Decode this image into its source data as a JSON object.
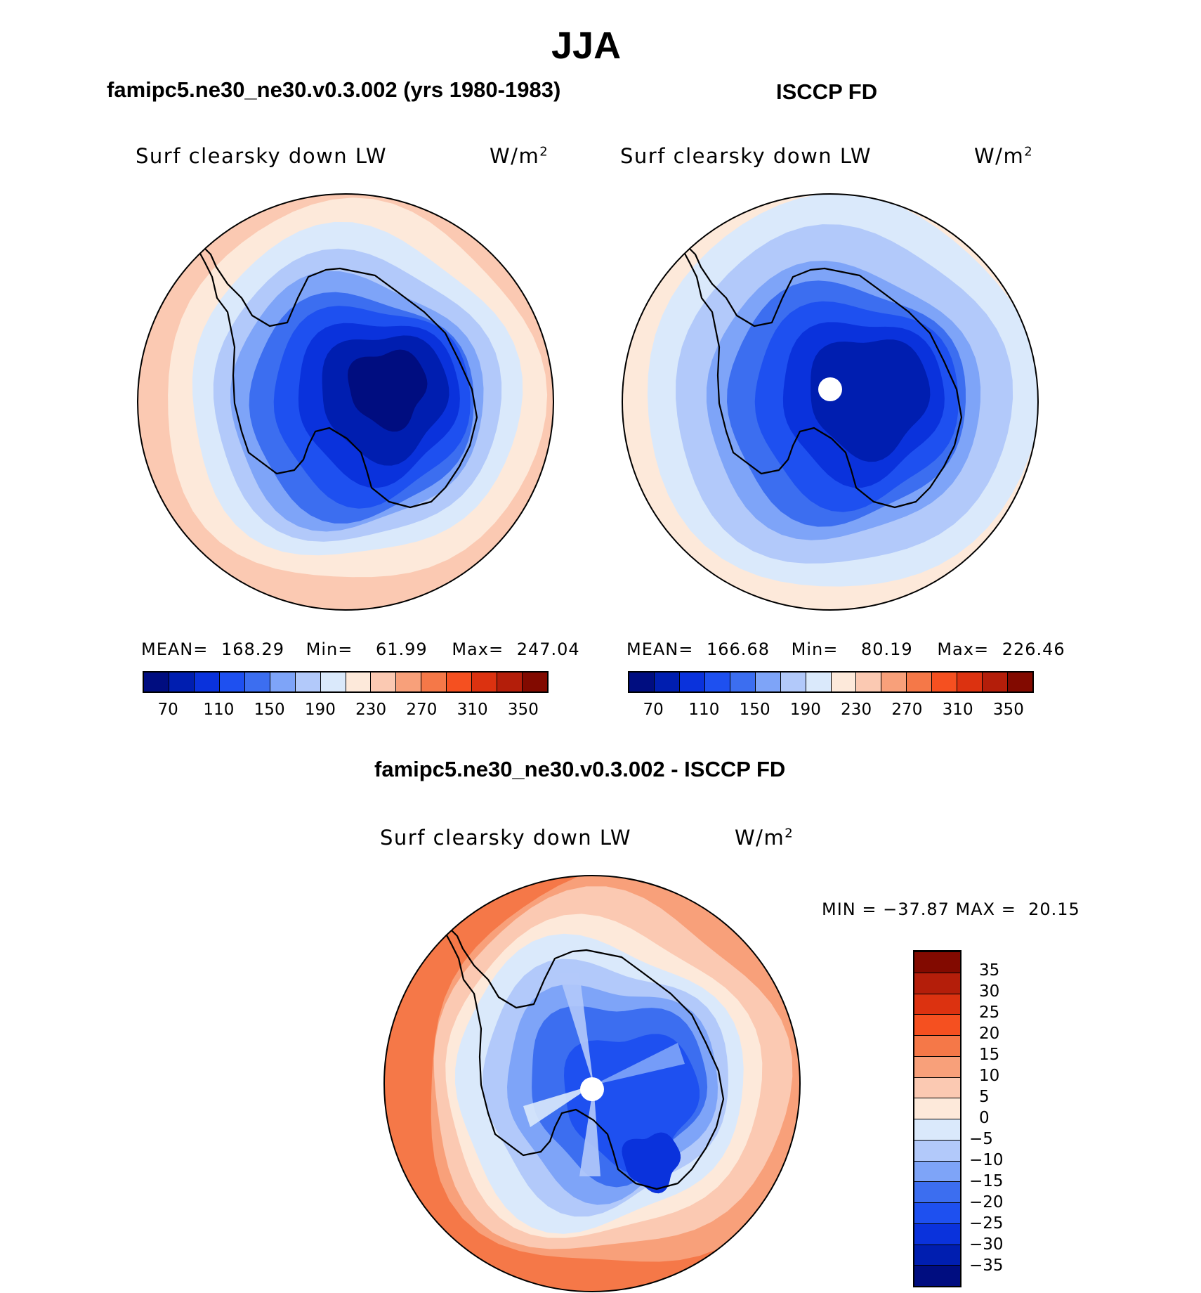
{
  "figure_title": "JJA",
  "panels": [
    {
      "heading": "famipc5.ne30_ne30.v0.3.002 (yrs 1980-1983)",
      "variable": "Surf clearsky down LW",
      "units_base": "W/m",
      "units_sup": "2",
      "mean_label": "MEAN=",
      "mean": "168.29",
      "min_label": "Min=",
      "min": "61.99",
      "max_label": "Max=",
      "max": "247.04",
      "pole_missing": false
    },
    {
      "heading": "ISCCP FD",
      "variable": "Surf clearsky down LW",
      "units_base": "W/m",
      "units_sup": "2",
      "mean_label": "MEAN=",
      "mean": "166.68",
      "min_label": "Min=",
      "min": "80.19",
      "max_label": "Max=",
      "max": "226.46",
      "pole_missing": true
    }
  ],
  "diff_panel": {
    "heading": "famipc5.ne30_ne30.v0.3.002 - ISCCP FD",
    "variable": "Surf clearsky down LW",
    "units_base": "W/m",
    "units_sup": "2",
    "stats_text": "MIN = −37.87 MAX =  20.15",
    "pole_missing": true
  },
  "colorbar_top": {
    "labels": [
      "70",
      "110",
      "150",
      "190",
      "230",
      "270",
      "310",
      "350"
    ],
    "colors": [
      "#000d80",
      "#001eb0",
      "#0a32dc",
      "#1e50f0",
      "#3c6ef0",
      "#7ea4f8",
      "#b2c9fa",
      "#dae9fb",
      "#fde9da",
      "#fbc9b2",
      "#f8a07a",
      "#f57848",
      "#f55020",
      "#dc3210",
      "#b41e0a",
      "#820a00"
    ]
  },
  "colorbar_diff": {
    "labels": [
      "35",
      "30",
      "25",
      "20",
      "15",
      "10",
      "5",
      "0",
      "−5",
      "−10",
      "−15",
      "−20",
      "−25",
      "−30",
      "−35"
    ],
    "colors": [
      "#000d80",
      "#001eb0",
      "#0a32dc",
      "#1e50f0",
      "#3c6ef0",
      "#7ea4f8",
      "#b2c9fa",
      "#dae9fb",
      "#fde9da",
      "#fbc9b2",
      "#f8a07a",
      "#f57848",
      "#f55020",
      "#dc3210",
      "#b41e0a",
      "#820a00"
    ]
  },
  "map_colors": {
    "ring_outer": "#fbc9b2",
    "ring_2": "#fde9da",
    "ring_3": "#dae9fb",
    "ring_4": "#b2c9fa",
    "ring_5": "#7ea4f8",
    "ring_6": "#3c6ef0",
    "ring_7": "#1e50f0",
    "ring_8": "#0a32dc",
    "ring_9": "#001eb0",
    "core": "#000d80",
    "diff_outer": "#f57848",
    "diff_2": "#f8a07a",
    "diff_3": "#fbc9b2",
    "diff_4": "#fde9da",
    "diff_5": "#dae9fb",
    "diff_6": "#b2c9fa",
    "diff_7": "#7ea4f8",
    "diff_8": "#3c6ef0",
    "diff_9": "#1e50f0",
    "diff_10": "#0a32dc"
  }
}
